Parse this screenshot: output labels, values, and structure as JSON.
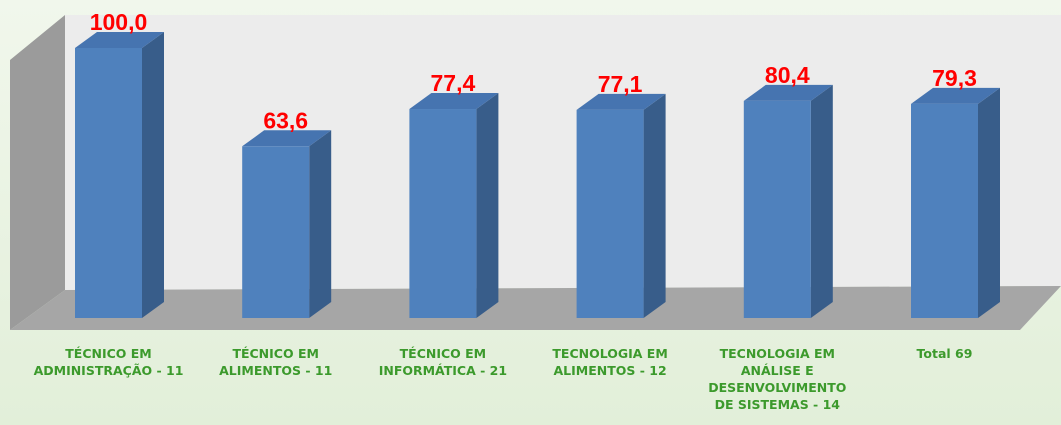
{
  "chart_data": {
    "type": "bar3d",
    "categories": [
      "TÉCNICO EM ADMINISTRAÇÃO - 11",
      "TÉCNICO EM ALIMENTOS - 11",
      "TÉCNICO EM INFORMÁTICA - 21",
      "TECNOLOGIA EM ALIMENTOS - 12",
      "TECNOLOGIA EM ANÁLISE E DESENVOLVIMENTO DE SISTEMAS - 14",
      "Total 69"
    ],
    "values": [
      100,
      63.6,
      77.4,
      77.1,
      80.4,
      79.3
    ],
    "value_labels": [
      "100,0",
      "63,6",
      "77,4",
      "77,1",
      "80,4",
      "79,3"
    ],
    "color": "#4f81bd",
    "label_color": "#ff0000",
    "category_color": "#3c9a2c"
  }
}
